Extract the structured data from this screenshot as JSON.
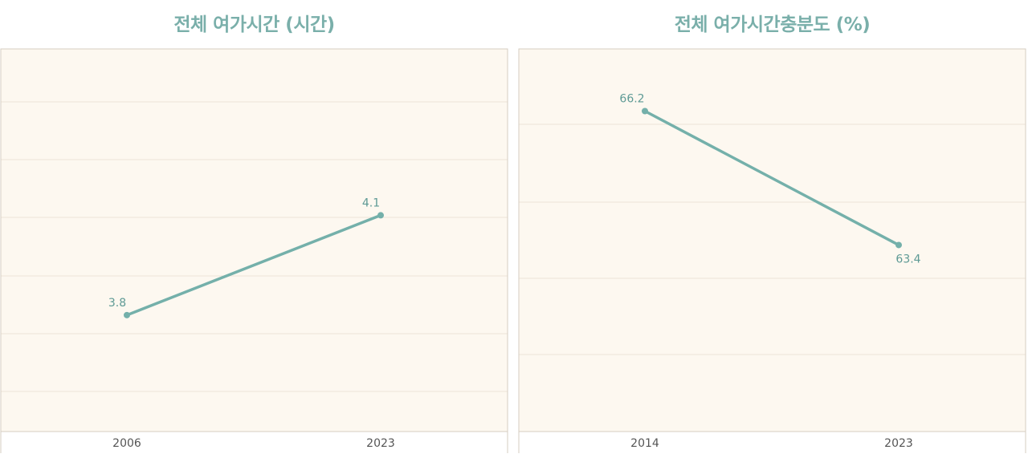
{
  "colors": {
    "title": "#7aafaa",
    "line": "#74b0aa",
    "label": "#5e9a95",
    "plot_bg": "#fdf8f0",
    "grid": "#ede5d8",
    "border": "#d6cec2",
    "tick": "#555555"
  },
  "chart_data": [
    {
      "type": "line",
      "title": "전체 여가시간 (시간)",
      "x": [
        "2006",
        "2023"
      ],
      "series": [
        {
          "values": [
            3.8,
            4.1
          ]
        }
      ],
      "ylim": [
        3.45,
        4.6
      ],
      "grid": true,
      "legend": "none"
    },
    {
      "type": "line",
      "title": "전체 여가시간충분도 (%)",
      "x": [
        "2014",
        "2023"
      ],
      "series": [
        {
          "values": [
            66.2,
            63.4
          ]
        }
      ],
      "ylim": [
        59.5,
        67.5
      ],
      "grid": true,
      "legend": "none"
    }
  ]
}
